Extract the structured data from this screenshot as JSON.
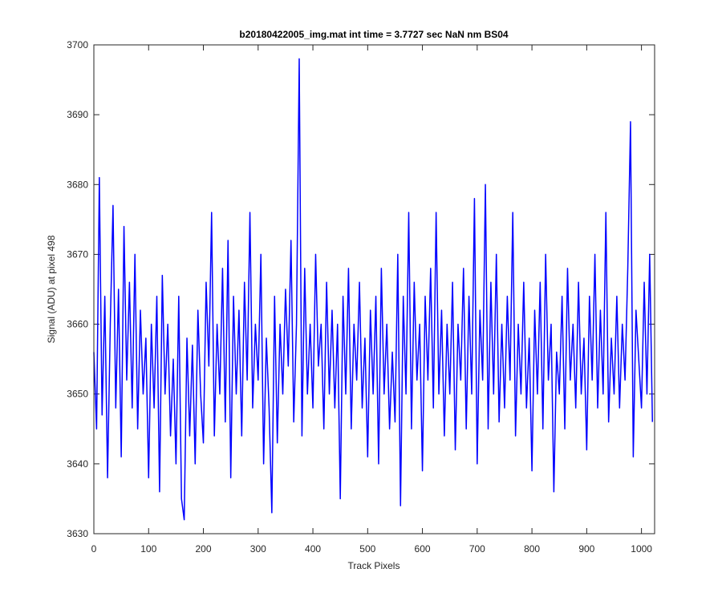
{
  "chart_data": {
    "type": "line",
    "title": "b20180422005_img.mat int time = 3.7727 sec  NaN nm BS04",
    "xlabel": "Track Pixels",
    "ylabel": "Signal (ADU) at pixel 498",
    "xlim": [
      0,
      1024
    ],
    "xticks": [
      0,
      100,
      200,
      300,
      400,
      500,
      600,
      700,
      800,
      900,
      1000
    ],
    "ylim": [
      3630,
      3700
    ],
    "yticks": [
      3630,
      3640,
      3650,
      3660,
      3670,
      3680,
      3690,
      3700
    ],
    "grid": false,
    "x": [
      0,
      5,
      10,
      15,
      20,
      25,
      30,
      35,
      40,
      45,
      50,
      55,
      60,
      65,
      70,
      75,
      80,
      85,
      90,
      95,
      100,
      105,
      110,
      115,
      120,
      125,
      130,
      135,
      140,
      145,
      150,
      155,
      160,
      165,
      170,
      175,
      180,
      185,
      190,
      195,
      200,
      205,
      210,
      215,
      220,
      225,
      230,
      235,
      240,
      245,
      250,
      255,
      260,
      265,
      270,
      275,
      280,
      285,
      290,
      295,
      300,
      305,
      310,
      315,
      320,
      325,
      330,
      335,
      340,
      345,
      350,
      355,
      360,
      365,
      370,
      375,
      380,
      385,
      390,
      395,
      400,
      405,
      410,
      415,
      420,
      425,
      430,
      435,
      440,
      445,
      450,
      455,
      460,
      465,
      470,
      475,
      480,
      485,
      490,
      495,
      500,
      505,
      510,
      515,
      520,
      525,
      530,
      535,
      540,
      545,
      550,
      555,
      560,
      565,
      570,
      575,
      580,
      585,
      590,
      595,
      600,
      605,
      610,
      615,
      620,
      625,
      630,
      635,
      640,
      645,
      650,
      655,
      660,
      665,
      670,
      675,
      680,
      685,
      690,
      695,
      700,
      705,
      710,
      715,
      720,
      725,
      730,
      735,
      740,
      745,
      750,
      755,
      760,
      765,
      770,
      775,
      780,
      785,
      790,
      795,
      800,
      805,
      810,
      815,
      820,
      825,
      830,
      835,
      840,
      845,
      850,
      855,
      860,
      865,
      870,
      875,
      880,
      885,
      890,
      895,
      900,
      905,
      910,
      915,
      920,
      925,
      930,
      935,
      940,
      945,
      950,
      955,
      960,
      965,
      970,
      975,
      980,
      985,
      990,
      995,
      1000,
      1005,
      1010,
      1015,
      1020
    ],
    "series": [
      {
        "name": "Signal",
        "color": "#0000ff",
        "values": [
          3656,
          3645,
          3681,
          3647,
          3664,
          3638,
          3660,
          3677,
          3648,
          3665,
          3641,
          3674,
          3652,
          3666,
          3648,
          3670,
          3645,
          3662,
          3650,
          3658,
          3638,
          3660,
          3648,
          3664,
          3636,
          3667,
          3650,
          3660,
          3644,
          3655,
          3640,
          3664,
          3635,
          3632,
          3658,
          3644,
          3657,
          3640,
          3662,
          3650,
          3643,
          3666,
          3654,
          3676,
          3644,
          3660,
          3650,
          3668,
          3646,
          3672,
          3638,
          3664,
          3650,
          3662,
          3644,
          3666,
          3652,
          3676,
          3648,
          3660,
          3652,
          3670,
          3640,
          3658,
          3648,
          3633,
          3664,
          3643,
          3660,
          3650,
          3665,
          3654,
          3672,
          3646,
          3660,
          3698,
          3644,
          3668,
          3650,
          3660,
          3648,
          3670,
          3654,
          3660,
          3645,
          3666,
          3650,
          3662,
          3648,
          3660,
          3635,
          3664,
          3650,
          3668,
          3645,
          3660,
          3652,
          3666,
          3648,
          3658,
          3641,
          3662,
          3650,
          3664,
          3640,
          3668,
          3650,
          3660,
          3645,
          3656,
          3646,
          3670,
          3634,
          3664,
          3650,
          3676,
          3645,
          3666,
          3652,
          3660,
          3639,
          3664,
          3652,
          3668,
          3648,
          3676,
          3650,
          3662,
          3644,
          3660,
          3650,
          3666,
          3642,
          3660,
          3652,
          3668,
          3645,
          3664,
          3650,
          3678,
          3640,
          3662,
          3652,
          3680,
          3645,
          3666,
          3650,
          3670,
          3646,
          3660,
          3648,
          3664,
          3652,
          3676,
          3644,
          3660,
          3650,
          3666,
          3648,
          3658,
          3639,
          3662,
          3650,
          3666,
          3645,
          3670,
          3652,
          3660,
          3636,
          3656,
          3650,
          3664,
          3645,
          3668,
          3652,
          3660,
          3648,
          3666,
          3650,
          3658,
          3642,
          3664,
          3652,
          3670,
          3648,
          3662,
          3650,
          3676,
          3646,
          3658,
          3650,
          3664,
          3648,
          3660,
          3652,
          3668,
          3689,
          3641,
          3662,
          3655,
          3648,
          3666,
          3650,
          3670,
          3646
        ]
      }
    ]
  }
}
